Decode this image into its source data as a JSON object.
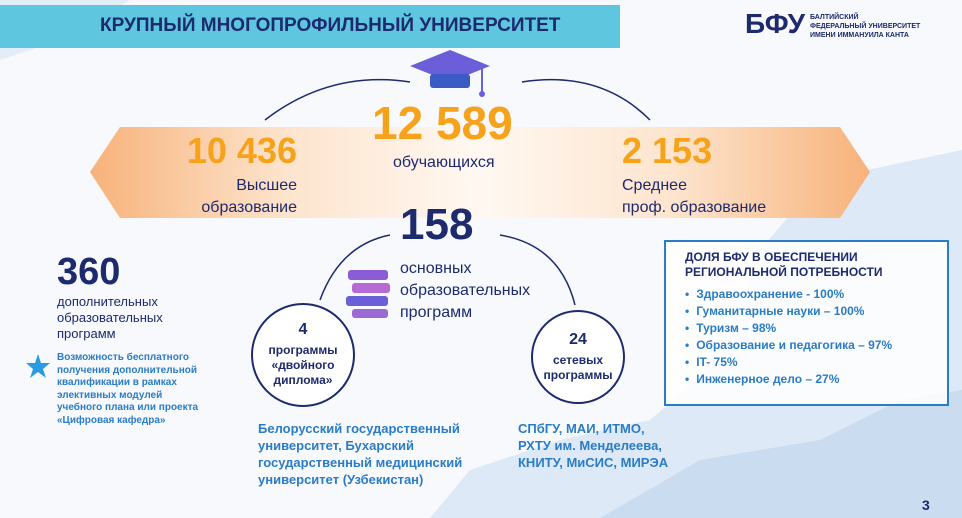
{
  "header": {
    "title": "КРУПНЫЙ МНОГОПРОФИЛЬНЫЙ УНИВЕРСИТЕТ",
    "logo_mark": "БФУ",
    "logo_lines": [
      "БАЛТИЙСКИЙ",
      "ФЕДЕРАЛЬНЫЙ УНИВЕРСИТЕТ",
      "ИМЕНИ ИММАНУИЛА КАНТА"
    ]
  },
  "students": {
    "total": {
      "value": "12 589",
      "label": "обучающихся"
    },
    "higher": {
      "value": "10 436",
      "label": [
        "Высшее",
        "образование"
      ]
    },
    "secondary": {
      "value": "2 153",
      "label": [
        "Среднее",
        "проф. образование"
      ]
    }
  },
  "programs": {
    "value": "158",
    "label": [
      "основных",
      "образовательных",
      "программ"
    ]
  },
  "additional": {
    "value": "360",
    "label": [
      "дополнительных",
      "образовательных",
      "программ"
    ],
    "note": [
      "Возможность бесплатного",
      "получения дополнительной",
      "квалификации в рамках",
      "элективных модулей",
      "учебного плана или проекта",
      "«Цифровая кафедра»"
    ]
  },
  "double_degree": {
    "value": "4",
    "label": [
      "программы",
      "«двойного",
      "диплома»"
    ],
    "partners": [
      "Белорусский государственный",
      "университет, Бухарский",
      "государственный медицинский",
      "университет (Узбекистан)"
    ]
  },
  "network": {
    "value": "24",
    "label": [
      "сетевых",
      "программы"
    ],
    "partners": [
      "СПбГУ, МАИ, ИТМО,",
      "РХТУ им. Менделеева,",
      "КНИТУ, МиСИС, МИРЭА"
    ]
  },
  "share": {
    "title": [
      "ДОЛЯ БФУ В ОБЕСПЕЧЕНИИ",
      "РЕГИОНАЛЬНОЙ ПОТРЕБНОСТИ"
    ],
    "items": [
      "Здравоохранение - 100%",
      "Гуманитарные науки – 100%",
      "Туризм – 98%",
      "Образование и педагогика – 97%",
      "IT- 75%",
      "Инженерное дело – 27%"
    ]
  },
  "page_number": "3"
}
